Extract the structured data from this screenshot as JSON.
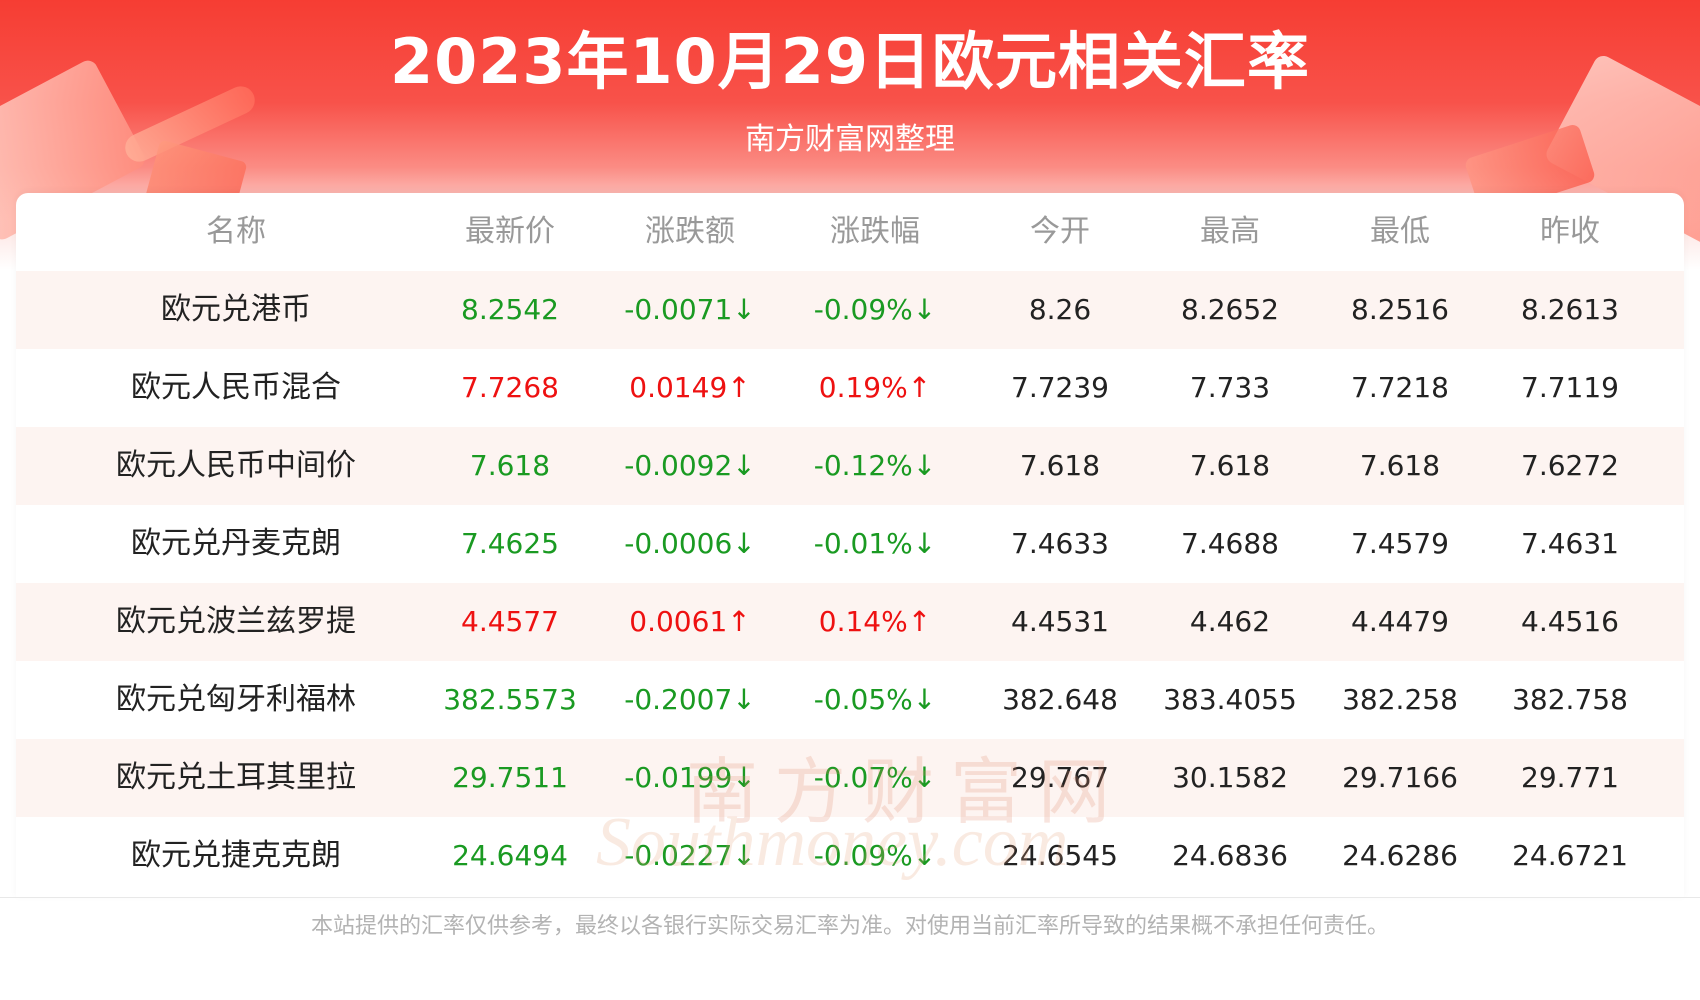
{
  "header": {
    "title": "2023年10月29日欧元相关汇率",
    "subtitle": "南方财富网整理"
  },
  "table": {
    "columns": [
      "名称",
      "最新价",
      "涨跌额",
      "涨跌幅",
      "今开",
      "最高",
      "最低",
      "昨收"
    ],
    "rows": [
      {
        "name": "欧元兑港币",
        "latest": "8.2542",
        "change": "-0.0071↓",
        "pct": "-0.09%↓",
        "open": "8.26",
        "high": "8.2652",
        "low": "8.2516",
        "prev": "8.2613",
        "trend": "down"
      },
      {
        "name": "欧元人民币混合",
        "latest": "7.7268",
        "change": "0.0149↑",
        "pct": "0.19%↑",
        "open": "7.7239",
        "high": "7.733",
        "low": "7.7218",
        "prev": "7.7119",
        "trend": "up"
      },
      {
        "name": "欧元人民币中间价",
        "latest": "7.618",
        "change": "-0.0092↓",
        "pct": "-0.12%↓",
        "open": "7.618",
        "high": "7.618",
        "low": "7.618",
        "prev": "7.6272",
        "trend": "down"
      },
      {
        "name": "欧元兑丹麦克朗",
        "latest": "7.4625",
        "change": "-0.0006↓",
        "pct": "-0.01%↓",
        "open": "7.4633",
        "high": "7.4688",
        "low": "7.4579",
        "prev": "7.4631",
        "trend": "down"
      },
      {
        "name": "欧元兑波兰兹罗提",
        "latest": "4.4577",
        "change": "0.0061↑",
        "pct": "0.14%↑",
        "open": "4.4531",
        "high": "4.462",
        "low": "4.4479",
        "prev": "4.4516",
        "trend": "up"
      },
      {
        "name": "欧元兑匈牙利福林",
        "latest": "382.5573",
        "change": "-0.2007↓",
        "pct": "-0.05%↓",
        "open": "382.648",
        "high": "383.4055",
        "low": "382.258",
        "prev": "382.758",
        "trend": "down"
      },
      {
        "name": "欧元兑土耳其里拉",
        "latest": "29.7511",
        "change": "-0.0199↓",
        "pct": "-0.07%↓",
        "open": "29.767",
        "high": "30.1582",
        "low": "29.7166",
        "prev": "29.771",
        "trend": "down"
      },
      {
        "name": "欧元兑捷克克朗",
        "latest": "24.6494",
        "change": "-0.0227↓",
        "pct": "-0.09%↓",
        "open": "24.6545",
        "high": "24.6836",
        "low": "24.6286",
        "prev": "24.6721",
        "trend": "down"
      }
    ]
  },
  "watermark": {
    "cn": "南方财富网",
    "en": "Southmoney.com"
  },
  "footer": {
    "disclaimer": "本站提供的汇率仅供参考，最终以各银行实际交易汇率为准。对使用当前汇率所导致的结果概不承担任何责任。"
  },
  "colors": {
    "up": "#ee1111",
    "down": "#1a9a22",
    "header_red": "#f63d33",
    "row_alt": "#fdf4f1"
  }
}
